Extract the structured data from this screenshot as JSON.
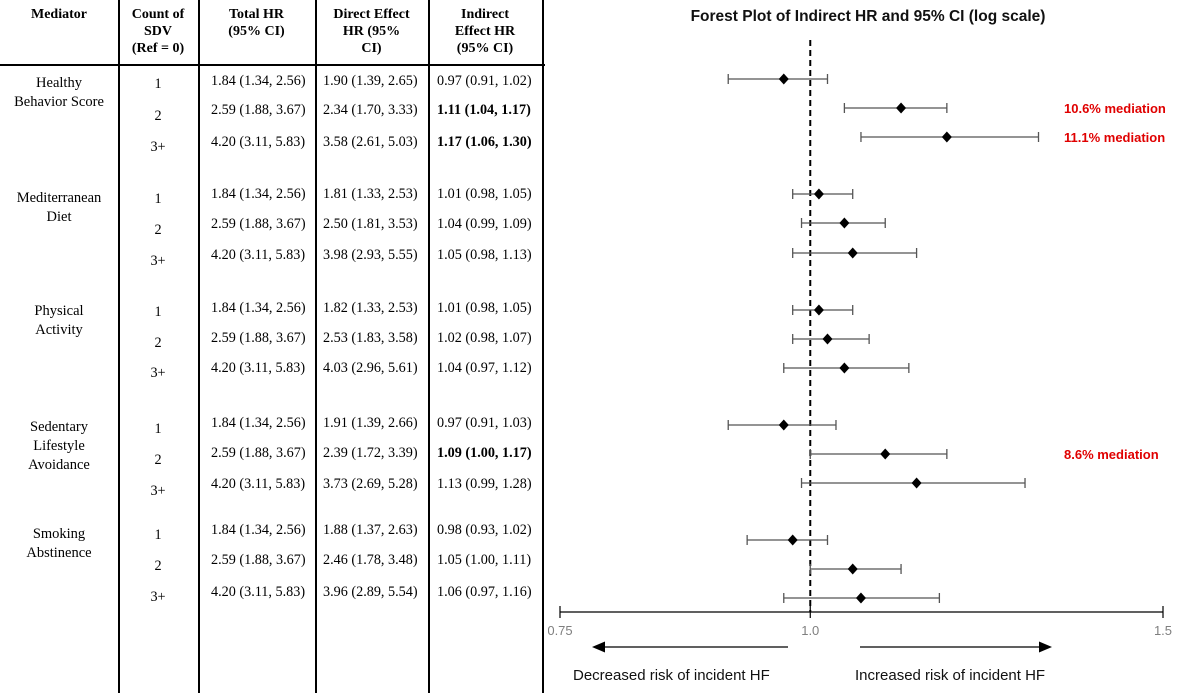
{
  "table": {
    "headers": {
      "mediator": "Mediator",
      "count": [
        "Count of",
        "SDV",
        "(Ref = 0)"
      ],
      "total": [
        "Total HR",
        "(95% CI)"
      ],
      "direct": [
        "Direct Effect",
        "HR (95%",
        "CI)"
      ],
      "indirect": [
        "Indirect",
        "Effect HR",
        "(95% CI)"
      ]
    },
    "groups": [
      {
        "mediator": [
          "Healthy",
          "Behavior Score"
        ],
        "rows": [
          {
            "count": "1",
            "total": "1.84 (1.34, 2.56)",
            "direct": "1.90 (1.39, 2.65)",
            "indirect": "0.97 (0.91, 1.02)",
            "bold": false
          },
          {
            "count": "2",
            "total": "2.59 (1.88, 3.67)",
            "direct": "2.34 (1.70, 3.33)",
            "indirect": "1.11 (1.04, 1.17)",
            "bold": true
          },
          {
            "count": "3+",
            "total": "4.20 (3.11, 5.83)",
            "direct": "3.58 (2.61, 5.03)",
            "indirect": "1.17 (1.06, 1.30)",
            "bold": true
          }
        ]
      },
      {
        "mediator": [
          "Mediterranean",
          "Diet"
        ],
        "rows": [
          {
            "count": "1",
            "total": "1.84 (1.34, 2.56)",
            "direct": "1.81 (1.33, 2.53)",
            "indirect": "1.01 (0.98, 1.05)",
            "bold": false
          },
          {
            "count": "2",
            "total": "2.59 (1.88, 3.67)",
            "direct": "2.50 (1.81, 3.53)",
            "indirect": "1.04 (0.99, 1.09)",
            "bold": false
          },
          {
            "count": "3+",
            "total": "4.20 (3.11, 5.83)",
            "direct": "3.98 (2.93, 5.55)",
            "indirect": "1.05 (0.98, 1.13)",
            "bold": false
          }
        ]
      },
      {
        "mediator": [
          "Physical",
          "Activity"
        ],
        "rows": [
          {
            "count": "1",
            "total": "1.84 (1.34, 2.56)",
            "direct": "1.82 (1.33, 2.53)",
            "indirect": "1.01 (0.98, 1.05)",
            "bold": false
          },
          {
            "count": "2",
            "total": "2.59 (1.88, 3.67)",
            "direct": "2.53 (1.83, 3.58)",
            "indirect": "1.02 (0.98, 1.07)",
            "bold": false
          },
          {
            "count": "3+",
            "total": "4.20 (3.11, 5.83)",
            "direct": "4.03 (2.96, 5.61)",
            "indirect": "1.04 (0.97, 1.12)",
            "bold": false
          }
        ]
      },
      {
        "mediator": [
          "Sedentary",
          "Lifestyle",
          "Avoidance"
        ],
        "rows": [
          {
            "count": "1",
            "total": "1.84 (1.34, 2.56)",
            "direct": "1.91 (1.39, 2.66)",
            "indirect": "0.97 (0.91, 1.03)",
            "bold": false
          },
          {
            "count": "2",
            "total": "2.59 (1.88, 3.67)",
            "direct": "2.39 (1.72, 3.39)",
            "indirect": "1.09 (1.00, 1.17)",
            "bold": true
          },
          {
            "count": "3+",
            "total": "4.20 (3.11, 5.83)",
            "direct": "3.73 (2.69, 5.28)",
            "indirect": "1.13 (0.99, 1.28)",
            "bold": false
          }
        ]
      },
      {
        "mediator": [
          "Smoking",
          "Abstinence"
        ],
        "rows": [
          {
            "count": "1",
            "total": "1.84 (1.34, 2.56)",
            "direct": "1.88 (1.37, 2.63)",
            "indirect": "0.98 (0.93, 1.02)",
            "bold": false
          },
          {
            "count": "2",
            "total": "2.59 (1.88, 3.67)",
            "direct": "2.46 (1.78, 3.48)",
            "indirect": "1.05 (1.00, 1.11)",
            "bold": false
          },
          {
            "count": "3+",
            "total": "4.20 (3.11, 5.83)",
            "direct": "3.96 (2.89, 5.54)",
            "indirect": "1.06 (0.97, 1.16)",
            "bold": false
          }
        ]
      }
    ]
  },
  "chart_data": {
    "type": "forest",
    "title": "Forest Plot of Indirect HR and 95% CI (log scale)",
    "scale": "log",
    "xlim": [
      0.75,
      1.5
    ],
    "ticks": [
      "0.75",
      "1.0",
      "1.5"
    ],
    "reference_line": 1.0,
    "points": [
      {
        "est": 0.97,
        "lo": 0.91,
        "hi": 1.02,
        "annotation": ""
      },
      {
        "est": 1.11,
        "lo": 1.04,
        "hi": 1.17,
        "annotation": "10.6% mediation"
      },
      {
        "est": 1.17,
        "lo": 1.06,
        "hi": 1.3,
        "annotation": "11.1% mediation"
      },
      {
        "est": 1.01,
        "lo": 0.98,
        "hi": 1.05,
        "annotation": ""
      },
      {
        "est": 1.04,
        "lo": 0.99,
        "hi": 1.09,
        "annotation": ""
      },
      {
        "est": 1.05,
        "lo": 0.98,
        "hi": 1.13,
        "annotation": ""
      },
      {
        "est": 1.01,
        "lo": 0.98,
        "hi": 1.05,
        "annotation": ""
      },
      {
        "est": 1.02,
        "lo": 0.98,
        "hi": 1.07,
        "annotation": ""
      },
      {
        "est": 1.04,
        "lo": 0.97,
        "hi": 1.12,
        "annotation": ""
      },
      {
        "est": 0.97,
        "lo": 0.91,
        "hi": 1.03,
        "annotation": ""
      },
      {
        "est": 1.09,
        "lo": 1.0,
        "hi": 1.17,
        "annotation": "8.6% mediation"
      },
      {
        "est": 1.13,
        "lo": 0.99,
        "hi": 1.28,
        "annotation": ""
      },
      {
        "est": 0.98,
        "lo": 0.93,
        "hi": 1.02,
        "annotation": ""
      },
      {
        "est": 1.05,
        "lo": 1.0,
        "hi": 1.11,
        "annotation": ""
      },
      {
        "est": 1.06,
        "lo": 0.97,
        "hi": 1.16,
        "annotation": ""
      }
    ],
    "arrow_left_label": "Decreased risk of incident HF",
    "arrow_right_label": "Increased risk of incident HF",
    "annotation_color": "#e00000"
  }
}
